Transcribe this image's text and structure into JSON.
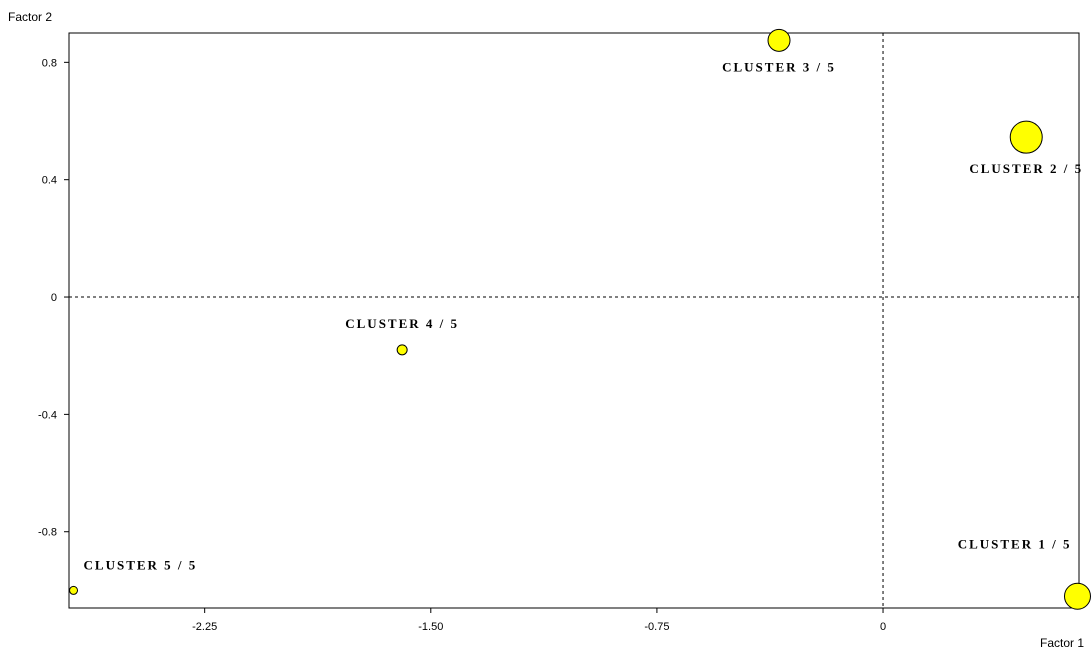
{
  "chart_data": {
    "type": "scatter",
    "xlabel": "Factor 1",
    "ylabel": "Factor 2",
    "xlim": [
      -2.7,
      0.65
    ],
    "ylim": [
      -1.06,
      0.9
    ],
    "x_ticks": [
      -2.25,
      -1.5,
      -0.75,
      0
    ],
    "x_tick_labels": [
      "-2.25",
      "-1.50",
      "-0.75",
      "0"
    ],
    "y_ticks": [
      0.8,
      0.4,
      0,
      -0.4,
      -0.8
    ],
    "y_tick_labels": [
      "0.8",
      "0.4",
      "0",
      "-0.4",
      "-0.8"
    ],
    "reference_lines": {
      "x": 0,
      "y": 0,
      "style": "dashed"
    },
    "grid": false,
    "point_color": "#ffff00",
    "points": [
      {
        "label": "CLUSTER 1 / 5",
        "x": 0.645,
        "y": -1.02,
        "size": 13,
        "label_position": "above-left"
      },
      {
        "label": "CLUSTER 2 / 5",
        "x": 0.475,
        "y": 0.545,
        "size": 16,
        "label_position": "below"
      },
      {
        "label": "CLUSTER 3 / 5",
        "x": -0.345,
        "y": 0.875,
        "size": 11,
        "label_position": "below"
      },
      {
        "label": "CLUSTER 4 / 5",
        "x": -1.595,
        "y": -0.18,
        "size": 5,
        "label_position": "above"
      },
      {
        "label": "CLUSTER 5 / 5",
        "x": -2.685,
        "y": -1.0,
        "size": 4,
        "label_position": "above-right"
      }
    ]
  }
}
